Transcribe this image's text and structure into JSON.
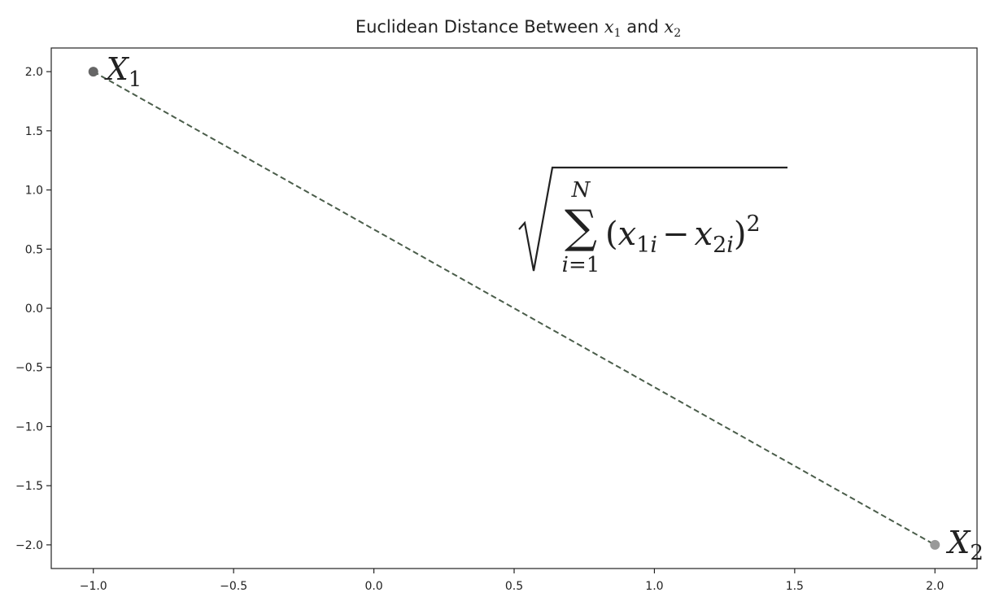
{
  "chart_data": {
    "type": "scatter",
    "title": {
      "text": "Euclidean Distance Between ",
      "var1": "x",
      "sub1": "1",
      "conj": " and ",
      "var2": "x",
      "sub2": "2"
    },
    "xlabel": "",
    "ylabel": "",
    "xlim": [
      -1.15,
      2.15
    ],
    "ylim": [
      -2.2,
      2.2
    ],
    "xticks": [
      -1.0,
      -0.5,
      0.0,
      0.5,
      1.0,
      1.5,
      2.0
    ],
    "yticks": [
      2.0,
      1.5,
      1.0,
      0.5,
      0.0,
      -0.5,
      -1.0,
      -1.5,
      -2.0
    ],
    "xtick_labels": [
      "−1.0",
      "−0.5",
      "0.0",
      "0.5",
      "1.0",
      "1.5",
      "2.0"
    ],
    "ytick_labels": [
      "2.0",
      "1.5",
      "1.0",
      "0.5",
      "0.0",
      "−0.5",
      "−1.0",
      "−1.5",
      "−2.0"
    ],
    "grid": false,
    "points": [
      {
        "label_var": "X",
        "label_sub": "1",
        "x": -1.0,
        "y": 2.0
      },
      {
        "label_var": "X",
        "label_sub": "2",
        "x": 2.0,
        "y": -2.0
      }
    ],
    "line": {
      "style": "dashed",
      "from": [
        -1.0,
        2.0
      ],
      "to": [
        2.0,
        -2.0
      ]
    },
    "formula": {
      "upper": "N",
      "lower_var": "i",
      "lower_eq": "=",
      "lower_val": "1",
      "open_paren": "(",
      "term1_var": "x",
      "term1_sub": "1i",
      "minus": "−",
      "term2_var": "x",
      "term2_sub": "2i",
      "close_paren": ")",
      "power": "2"
    },
    "colors": {
      "line": "#4a5d4a",
      "point1": "#666666",
      "point2": "#999999",
      "axes": "#222222",
      "text": "#222222"
    }
  }
}
